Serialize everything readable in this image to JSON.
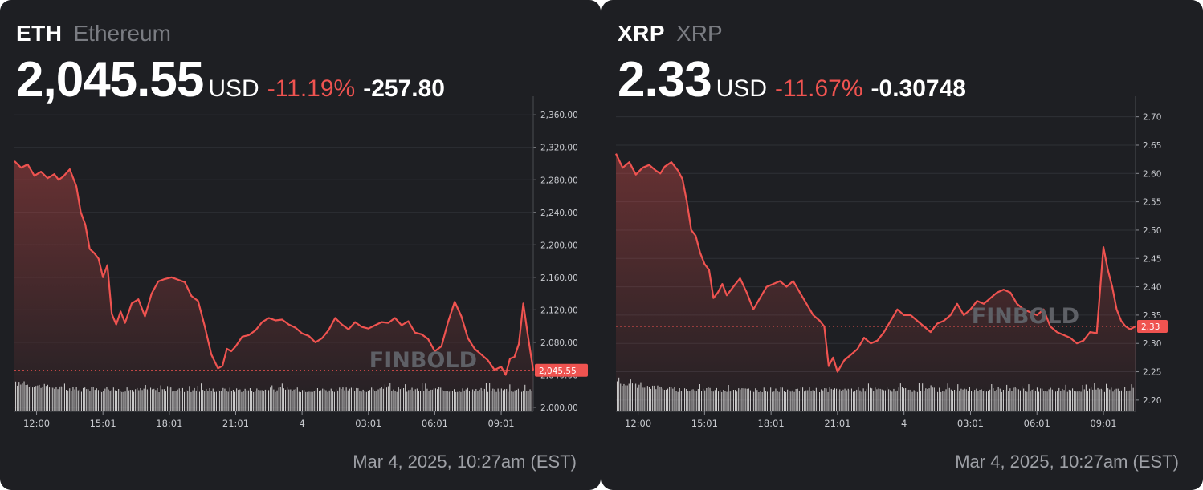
{
  "charts": [
    {
      "id": "eth",
      "symbol": "ETH",
      "name": "Ethereum",
      "price": "2,045.55",
      "currency": "USD",
      "change_pct": "-11.19%",
      "change_abs": "-257.80",
      "timestamp": "Mar 4, 2025, 10:27am (EST)",
      "watermark": "FINBOLD",
      "colors": {
        "line": "#ef5350",
        "text_down": "#ef5350",
        "background": "#1e1f23",
        "volume": "#e6e6e6"
      }
    },
    {
      "id": "xrp",
      "symbol": "XRP",
      "name": "XRP",
      "price": "2.33",
      "currency": "USD",
      "change_pct": "-11.67%",
      "change_abs": "-0.30748",
      "timestamp": "Mar 4, 2025, 10:27am (EST)",
      "watermark": "FINBOLD",
      "colors": {
        "line": "#ef5350",
        "text_down": "#ef5350",
        "background": "#1e1f23",
        "volume": "#e6e6e6"
      }
    }
  ],
  "chart_data": [
    {
      "type": "line",
      "title": "ETH Ethereum",
      "x_tick_labels": [
        "12:00",
        "15:01",
        "18:01",
        "21:01",
        "4",
        "03:01",
        "06:01",
        "09:01"
      ],
      "x_tick_hours": [
        1,
        4,
        7,
        10,
        13,
        16,
        19,
        22
      ],
      "x_range_hours": [
        0,
        23.45
      ],
      "y_ticks": [
        "2,000.00",
        "2,040.00",
        "2,080.00",
        "2,120.00",
        "2,160.00",
        "2,200.00",
        "2,240.00",
        "2,280.00",
        "2,320.00",
        "2,360.00"
      ],
      "y_tick_values": [
        2000,
        2040,
        2080,
        2120,
        2160,
        2200,
        2240,
        2280,
        2320,
        2360
      ],
      "ylim": [
        1995,
        2375
      ],
      "current_value": 2045.55,
      "current_label": "2,045.55",
      "grid": true,
      "series": [
        {
          "x": [
            0,
            0.3,
            0.6,
            0.9,
            1.2,
            1.5,
            1.8,
            2.0,
            2.2,
            2.5,
            2.8,
            3.0,
            3.2,
            3.4,
            3.6,
            3.8,
            4.0,
            4.2,
            4.4,
            4.6,
            4.8,
            5.0,
            5.3,
            5.6,
            5.9,
            6.2,
            6.5,
            6.8,
            7.1,
            7.4,
            7.7,
            8.0,
            8.3,
            8.6,
            8.9,
            9.2,
            9.4,
            9.6,
            9.8,
            10.0,
            10.3,
            10.6,
            10.9,
            11.2,
            11.5,
            11.8,
            12.1,
            12.4,
            12.7,
            13.0,
            13.3,
            13.6,
            13.9,
            14.2,
            14.5,
            14.8,
            15.1,
            15.4,
            15.7,
            16.0,
            16.3,
            16.6,
            16.9,
            17.2,
            17.5,
            17.8,
            18.1,
            18.4,
            18.7,
            19.0,
            19.3,
            19.6,
            19.9,
            20.2,
            20.5,
            20.8,
            21.1,
            21.4,
            21.7,
            22.0,
            22.2,
            22.4,
            22.6,
            22.8,
            23.0,
            23.2,
            23.45
          ],
          "values": [
            2303,
            2295,
            2299,
            2285,
            2290,
            2282,
            2287,
            2280,
            2284,
            2293,
            2272,
            2240,
            2225,
            2195,
            2190,
            2183,
            2160,
            2175,
            2115,
            2102,
            2118,
            2104,
            2128,
            2133,
            2112,
            2140,
            2155,
            2158,
            2160,
            2157,
            2154,
            2137,
            2131,
            2100,
            2065,
            2048,
            2051,
            2072,
            2069,
            2075,
            2087,
            2089,
            2095,
            2105,
            2110,
            2107,
            2108,
            2102,
            2098,
            2091,
            2088,
            2080,
            2085,
            2095,
            2110,
            2102,
            2096,
            2105,
            2099,
            2097,
            2101,
            2105,
            2104,
            2110,
            2101,
            2106,
            2092,
            2090,
            2084,
            2069,
            2075,
            2105,
            2130,
            2112,
            2085,
            2072,
            2065,
            2058,
            2046,
            2050,
            2040,
            2060,
            2062,
            2078,
            2128,
            2090,
            2045.55
          ]
        }
      ]
    },
    {
      "type": "line",
      "title": "XRP XRP",
      "x_tick_labels": [
        "12:00",
        "15:01",
        "18:01",
        "21:01",
        "4",
        "03:01",
        "06:01",
        "09:01"
      ],
      "x_tick_hours": [
        1,
        4,
        7,
        10,
        13,
        16,
        19,
        22
      ],
      "x_range_hours": [
        0,
        23.45
      ],
      "y_ticks": [
        "2.20",
        "2.25",
        "2.30",
        "2.35",
        "2.40",
        "2.45",
        "2.50",
        "2.55",
        "2.60",
        "2.65",
        "2.70"
      ],
      "y_tick_values": [
        2.2,
        2.25,
        2.3,
        2.35,
        2.4,
        2.45,
        2.5,
        2.55,
        2.6,
        2.65,
        2.7
      ],
      "ylim": [
        2.18,
        2.725
      ],
      "current_value": 2.33,
      "current_label": "2.33",
      "grid": true,
      "series": [
        {
          "x": [
            0,
            0.3,
            0.6,
            0.9,
            1.2,
            1.5,
            1.8,
            2.0,
            2.2,
            2.5,
            2.8,
            3.0,
            3.2,
            3.4,
            3.6,
            3.8,
            4.0,
            4.2,
            4.4,
            4.6,
            4.8,
            5.0,
            5.3,
            5.6,
            5.9,
            6.2,
            6.5,
            6.8,
            7.1,
            7.4,
            7.7,
            8.0,
            8.3,
            8.6,
            8.9,
            9.2,
            9.4,
            9.6,
            9.8,
            10.0,
            10.3,
            10.6,
            10.9,
            11.2,
            11.5,
            11.8,
            12.1,
            12.4,
            12.7,
            13.0,
            13.3,
            13.6,
            13.9,
            14.2,
            14.5,
            14.8,
            15.1,
            15.4,
            15.7,
            16.0,
            16.3,
            16.6,
            16.9,
            17.2,
            17.5,
            17.8,
            18.1,
            18.4,
            18.7,
            19.0,
            19.3,
            19.6,
            19.9,
            20.2,
            20.5,
            20.8,
            21.1,
            21.4,
            21.7,
            22.0,
            22.2,
            22.4,
            22.6,
            22.8,
            23.0,
            23.2,
            23.45
          ],
          "values": [
            2.635,
            2.61,
            2.62,
            2.598,
            2.61,
            2.615,
            2.605,
            2.6,
            2.612,
            2.62,
            2.605,
            2.59,
            2.55,
            2.5,
            2.49,
            2.46,
            2.44,
            2.43,
            2.38,
            2.39,
            2.405,
            2.385,
            2.4,
            2.415,
            2.39,
            2.36,
            2.38,
            2.4,
            2.405,
            2.41,
            2.4,
            2.41,
            2.39,
            2.37,
            2.35,
            2.34,
            2.33,
            2.26,
            2.275,
            2.25,
            2.27,
            2.28,
            2.29,
            2.31,
            2.3,
            2.305,
            2.32,
            2.34,
            2.36,
            2.35,
            2.35,
            2.34,
            2.33,
            2.32,
            2.335,
            2.34,
            2.35,
            2.37,
            2.35,
            2.36,
            2.375,
            2.37,
            2.38,
            2.39,
            2.395,
            2.39,
            2.37,
            2.36,
            2.355,
            2.35,
            2.36,
            2.33,
            2.32,
            2.315,
            2.31,
            2.3,
            2.305,
            2.32,
            2.318,
            2.47,
            2.43,
            2.4,
            2.36,
            2.34,
            2.33,
            2.325,
            2.33
          ]
        }
      ]
    }
  ]
}
